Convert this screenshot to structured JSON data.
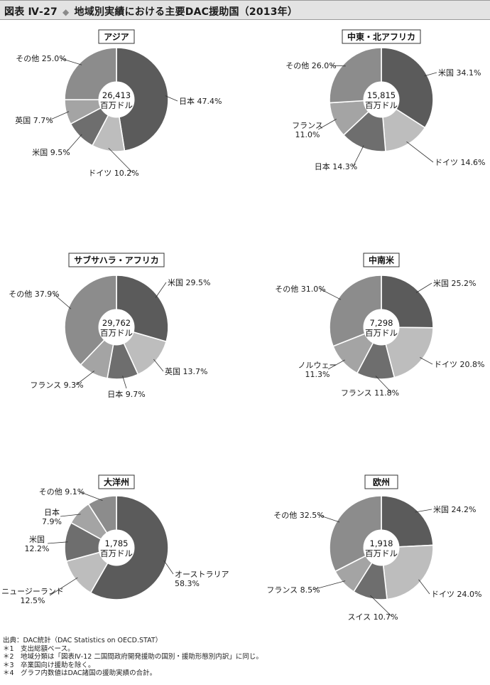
{
  "header": {
    "fig_label": "図表 Ⅳ-27",
    "diamond": "◆",
    "title": "地域別実績における主要DAC援助国（2013年）"
  },
  "footnotes": [
    "出典：DAC統計（DAC Statistics on OECD.STAT）",
    "＊1　支出総額ベース。",
    "＊2　地域分類は「図表Ⅳ-12 二国間政府開発援助の国別・援助形態別内訳」に同じ。",
    "＊3　卒業国向け援助を除く。",
    "＊4　グラフ内数値はDAC諸国の援助実績の合計。"
  ],
  "colors": {
    "dark": "#5b5b5b",
    "light": "#bdbdbd",
    "mid": "#7a7a7a",
    "midlight": "#9a9a9a",
    "other": "#8c8c8c",
    "edge": "#ffffff",
    "leader": "#333333"
  },
  "chart_data": [
    {
      "type": "pie",
      "title": "アジア",
      "center_value": "26,413",
      "center_unit": "百万ドル",
      "slices": [
        {
          "label": "日本",
          "value": 47.4,
          "text": "日本 47.4%",
          "color": "#5b5b5b"
        },
        {
          "label": "ドイツ",
          "value": 10.2,
          "text": "ドイツ 10.2%",
          "color": "#bdbdbd"
        },
        {
          "label": "米国",
          "value": 9.5,
          "text": "米国 9.5%",
          "color": "#6e6e6e"
        },
        {
          "label": "英国",
          "value": 7.7,
          "text": "英国 7.7%",
          "color": "#a4a4a4"
        },
        {
          "label": "その他",
          "value": 25.0,
          "text": "その他 25.0%",
          "color": "#8c8c8c"
        }
      ]
    },
    {
      "type": "pie",
      "title": "中東・北アフリカ",
      "center_value": "15,815",
      "center_unit": "百万ドル",
      "slices": [
        {
          "label": "米国",
          "value": 34.1,
          "text": "米国 34.1%",
          "color": "#5b5b5b"
        },
        {
          "label": "ドイツ",
          "value": 14.6,
          "text": "ドイツ 14.6%",
          "color": "#bdbdbd"
        },
        {
          "label": "日本",
          "value": 14.3,
          "text": "日本 14.3%",
          "color": "#6e6e6e"
        },
        {
          "label": "フランス",
          "value": 11.0,
          "text": "フランス\n11.0%",
          "color": "#a4a4a4"
        },
        {
          "label": "その他",
          "value": 26.0,
          "text": "その他 26.0%",
          "color": "#8c8c8c"
        }
      ]
    },
    {
      "type": "pie",
      "title": "サブサハラ・アフリカ",
      "center_value": "29,762",
      "center_unit": "百万ドル",
      "slices": [
        {
          "label": "米国",
          "value": 29.5,
          "text": "米国 29.5%",
          "color": "#5b5b5b"
        },
        {
          "label": "英国",
          "value": 13.7,
          "text": "英国 13.7%",
          "color": "#bdbdbd"
        },
        {
          "label": "日本",
          "value": 9.7,
          "text": "日本 9.7%",
          "color": "#6e6e6e"
        },
        {
          "label": "フランス",
          "value": 9.3,
          "text": "フランス 9.3%",
          "color": "#a4a4a4"
        },
        {
          "label": "その他",
          "value": 37.9,
          "text": "その他 37.9%",
          "color": "#8c8c8c"
        }
      ]
    },
    {
      "type": "pie",
      "title": "中南米",
      "center_value": "7,298",
      "center_unit": "百万ドル",
      "slices": [
        {
          "label": "米国",
          "value": 25.2,
          "text": "米国 25.2%",
          "color": "#5b5b5b"
        },
        {
          "label": "ドイツ",
          "value": 20.8,
          "text": "ドイツ 20.8%",
          "color": "#bdbdbd"
        },
        {
          "label": "フランス",
          "value": 11.8,
          "text": "フランス 11.8%",
          "color": "#6e6e6e"
        },
        {
          "label": "ノルウェー",
          "value": 11.3,
          "text": "ノルウェー\n11.3%",
          "color": "#a4a4a4"
        },
        {
          "label": "その他",
          "value": 31.0,
          "text": "その他 31.0%",
          "color": "#8c8c8c"
        }
      ]
    },
    {
      "type": "pie",
      "title": "大洋州",
      "center_value": "1,785",
      "center_unit": "百万ドル",
      "slices": [
        {
          "label": "オーストラリア",
          "value": 58.3,
          "text": "オーストラリア\n58.3%",
          "color": "#5b5b5b"
        },
        {
          "label": "ニュージーランド",
          "value": 12.5,
          "text": "ニュージーランド\n12.5%",
          "color": "#bdbdbd"
        },
        {
          "label": "米国",
          "value": 12.2,
          "text": "米国\n12.2%",
          "color": "#6e6e6e"
        },
        {
          "label": "日本",
          "value": 7.9,
          "text": "日本\n7.9%",
          "color": "#a4a4a4"
        },
        {
          "label": "その他",
          "value": 9.1,
          "text": "その他 9.1%",
          "color": "#8c8c8c"
        }
      ]
    },
    {
      "type": "pie",
      "title": "欧州",
      "center_value": "1,918",
      "center_unit": "百万ドル",
      "slices": [
        {
          "label": "米国",
          "value": 24.2,
          "text": "米国 24.2%",
          "color": "#5b5b5b"
        },
        {
          "label": "ドイツ",
          "value": 24.0,
          "text": "ドイツ 24.0%",
          "color": "#bdbdbd"
        },
        {
          "label": "スイス",
          "value": 10.7,
          "text": "スイス 10.7%",
          "color": "#6e6e6e"
        },
        {
          "label": "フランス",
          "value": 8.5,
          "text": "フランス 8.5%",
          "color": "#a4a4a4"
        },
        {
          "label": "その他",
          "value": 32.5,
          "text": "その他 32.5%",
          "color": "#8c8c8c"
        }
      ]
    }
  ]
}
